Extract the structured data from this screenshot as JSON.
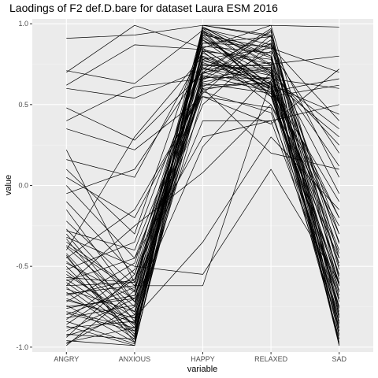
{
  "chart_data": {
    "type": "line",
    "title": "Laodings of F2 def.D.bare for dataset Laura ESM 2016",
    "xlabel": "variable",
    "ylabel": "value",
    "categories": [
      "ANGRY",
      "ANXIOUS",
      "HAPPY",
      "RELAXED",
      "SAD"
    ],
    "y_ticks": [
      "-1.0",
      "-0.5",
      "0.0",
      "0.5",
      "1.0"
    ],
    "y_tick_values": [
      -1.0,
      -0.5,
      0.0,
      0.5,
      1.0
    ],
    "ylim": [
      -1.03,
      1.03
    ],
    "grid": true,
    "colors": {
      "panel": "#ebebeb",
      "grid": "#ffffff",
      "line": "#000000"
    },
    "series": [
      {
        "values": [
          0.91,
          0.93,
          0.99,
          0.93,
          -0.99
        ]
      },
      {
        "values": [
          0.7,
          0.99,
          0.85,
          0.99,
          0.98
        ]
      },
      {
        "values": [
          0.71,
          0.63,
          0.96,
          0.55,
          -0.61
        ]
      },
      {
        "values": [
          0.62,
          0.87,
          0.84,
          0.75,
          0.8
        ]
      },
      {
        "values": [
          0.6,
          0.54,
          0.72,
          0.66,
          0.6
        ]
      },
      {
        "values": [
          0.48,
          0.28,
          0.7,
          0.6,
          -0.1
        ]
      },
      {
        "values": [
          0.4,
          0.61,
          0.66,
          0.73,
          0.12
        ]
      },
      {
        "values": [
          0.35,
          0.22,
          0.55,
          0.38,
          0.72
        ]
      },
      {
        "values": [
          0.22,
          -0.6,
          0.75,
          0.7,
          0.25
        ]
      },
      {
        "values": [
          0.16,
          0.05,
          0.83,
          0.5,
          -0.45
        ]
      },
      {
        "values": [
          0.1,
          -0.3,
          0.92,
          0.62,
          0.44
        ]
      },
      {
        "values": [
          0.05,
          -0.2,
          0.6,
          0.2,
          0.1
        ]
      },
      {
        "values": [
          0.0,
          -0.45,
          0.3,
          0.4,
          -0.75
        ]
      },
      {
        "values": [
          -0.05,
          0.1,
          0.73,
          0.58,
          0.66
        ]
      },
      {
        "values": [
          -0.1,
          -0.55,
          0.78,
          0.85,
          -0.3
        ]
      },
      {
        "values": [
          -0.15,
          -0.72,
          0.24,
          0.7,
          -0.55
        ]
      },
      {
        "values": [
          -0.22,
          -0.62,
          -0.62,
          0.65,
          0.3
        ]
      },
      {
        "values": [
          -0.28,
          -0.4,
          0.65,
          0.9,
          -0.9
        ]
      },
      {
        "values": [
          -0.3,
          -0.8,
          0.9,
          0.6,
          -0.2
        ]
      },
      {
        "values": [
          -0.32,
          -0.5,
          -0.55,
          0.1,
          -0.6
        ]
      },
      {
        "values": [
          -0.35,
          -0.65,
          0.98,
          0.75,
          -0.65
        ]
      },
      {
        "values": [
          -0.38,
          -0.75,
          0.7,
          0.97,
          -0.8
        ]
      },
      {
        "values": [
          -0.4,
          0.3,
          0.8,
          0.55,
          0.62
        ]
      },
      {
        "values": [
          -0.42,
          -0.88,
          0.95,
          0.8,
          -0.35
        ]
      },
      {
        "values": [
          -0.45,
          -0.15,
          0.58,
          0.45,
          -0.7
        ]
      },
      {
        "values": [
          -0.48,
          -0.7,
          0.62,
          0.63,
          -0.95
        ]
      },
      {
        "values": [
          -0.5,
          -0.92,
          0.99,
          0.92,
          -0.5
        ]
      },
      {
        "values": [
          -0.52,
          -0.35,
          0.77,
          0.68,
          -0.4
        ]
      },
      {
        "values": [
          -0.55,
          -0.82,
          -0.35,
          0.3,
          -0.15
        ]
      },
      {
        "values": [
          -0.57,
          -0.6,
          0.88,
          0.86,
          0.4
        ]
      },
      {
        "values": [
          -0.6,
          -0.9,
          0.68,
          0.58,
          -0.85
        ]
      },
      {
        "values": [
          -0.62,
          -0.25,
          0.08,
          0.5,
          -0.25
        ]
      },
      {
        "values": [
          -0.64,
          -0.78,
          0.97,
          0.7,
          -0.92
        ]
      },
      {
        "values": [
          -0.66,
          -0.95,
          0.83,
          0.78,
          -0.78
        ]
      },
      {
        "values": [
          -0.68,
          -0.58,
          0.5,
          0.88,
          0.05
        ]
      },
      {
        "values": [
          -0.7,
          -0.85,
          0.93,
          0.62,
          -0.6
        ]
      },
      {
        "values": [
          -0.72,
          -0.48,
          0.74,
          0.74,
          -0.97
        ]
      },
      {
        "values": [
          -0.74,
          -0.97,
          0.99,
          0.99,
          -0.45
        ]
      },
      {
        "values": [
          -0.76,
          -0.68,
          0.6,
          0.64,
          -0.3
        ]
      },
      {
        "values": [
          -0.78,
          -0.88,
          0.86,
          0.82,
          -0.88
        ]
      },
      {
        "values": [
          -0.8,
          -0.63,
          0.4,
          0.4,
          0.5
        ]
      },
      {
        "values": [
          -0.82,
          -0.74,
          0.95,
          0.55,
          -0.68
        ]
      },
      {
        "values": [
          -0.84,
          -0.98,
          0.72,
          0.95,
          -0.58
        ]
      },
      {
        "values": [
          -0.86,
          -0.58,
          0.64,
          0.72,
          -0.99
        ]
      },
      {
        "values": [
          -0.88,
          -0.84,
          0.9,
          0.68,
          -0.2
        ]
      },
      {
        "values": [
          -0.9,
          -0.7,
          0.78,
          0.6,
          -0.84
        ]
      },
      {
        "values": [
          -0.92,
          -0.95,
          0.98,
          0.8,
          -0.72
        ]
      },
      {
        "values": [
          -0.94,
          -0.55,
          0.57,
          0.93,
          -0.62
        ]
      },
      {
        "values": [
          -0.96,
          -0.99,
          0.85,
          0.57,
          -0.95
        ]
      },
      {
        "values": [
          -0.98,
          -0.75,
          0.67,
          0.66,
          -0.48
        ]
      },
      {
        "values": [
          -0.99,
          -0.65,
          0.93,
          0.85,
          0.7
        ]
      },
      {
        "values": [
          -0.97,
          -0.88,
          0.55,
          0.48,
          -0.88
        ]
      },
      {
        "values": [
          -0.93,
          -0.8,
          0.7,
          0.76,
          -0.05
        ]
      },
      {
        "values": [
          -0.87,
          -0.99,
          0.8,
          0.64,
          -0.76
        ]
      },
      {
        "values": [
          -0.83,
          -0.52,
          0.88,
          0.92,
          -0.52
        ]
      },
      {
        "values": [
          -0.79,
          -0.9,
          0.63,
          0.57,
          -0.66
        ]
      },
      {
        "values": [
          -0.75,
          -0.7,
          0.96,
          0.69,
          -0.9
        ]
      },
      {
        "values": [
          -0.71,
          -0.82,
          0.69,
          0.88,
          -0.36
        ]
      },
      {
        "values": [
          -0.67,
          -0.62,
          0.76,
          0.61,
          -0.82
        ]
      },
      {
        "values": [
          -0.63,
          -0.93,
          0.98,
          0.74,
          -0.98
        ]
      },
      {
        "values": [
          -0.59,
          -0.45,
          0.61,
          0.83,
          0.2
        ]
      },
      {
        "values": [
          -0.53,
          -0.86,
          0.82,
          0.59,
          -0.7
        ]
      },
      {
        "values": [
          -0.47,
          -0.78,
          0.91,
          0.71,
          -0.56
        ]
      },
      {
        "values": [
          -0.43,
          -0.97,
          0.66,
          0.96,
          -0.86
        ]
      },
      {
        "values": [
          -0.37,
          -0.66,
          0.79,
          0.63,
          -0.42
        ]
      },
      {
        "values": [
          -0.33,
          -0.84,
          0.94,
          0.79,
          -0.93
        ]
      },
      {
        "values": [
          -0.27,
          -0.72,
          0.59,
          0.67,
          0.35
        ]
      },
      {
        "values": [
          -0.62,
          -0.6,
          0.72,
          0.73,
          -0.75
        ]
      },
      {
        "values": [
          -0.58,
          -0.86,
          0.84,
          0.61,
          -0.62
        ]
      },
      {
        "values": [
          -0.44,
          -0.94,
          0.97,
          0.87,
          -0.81
        ]
      }
    ]
  }
}
